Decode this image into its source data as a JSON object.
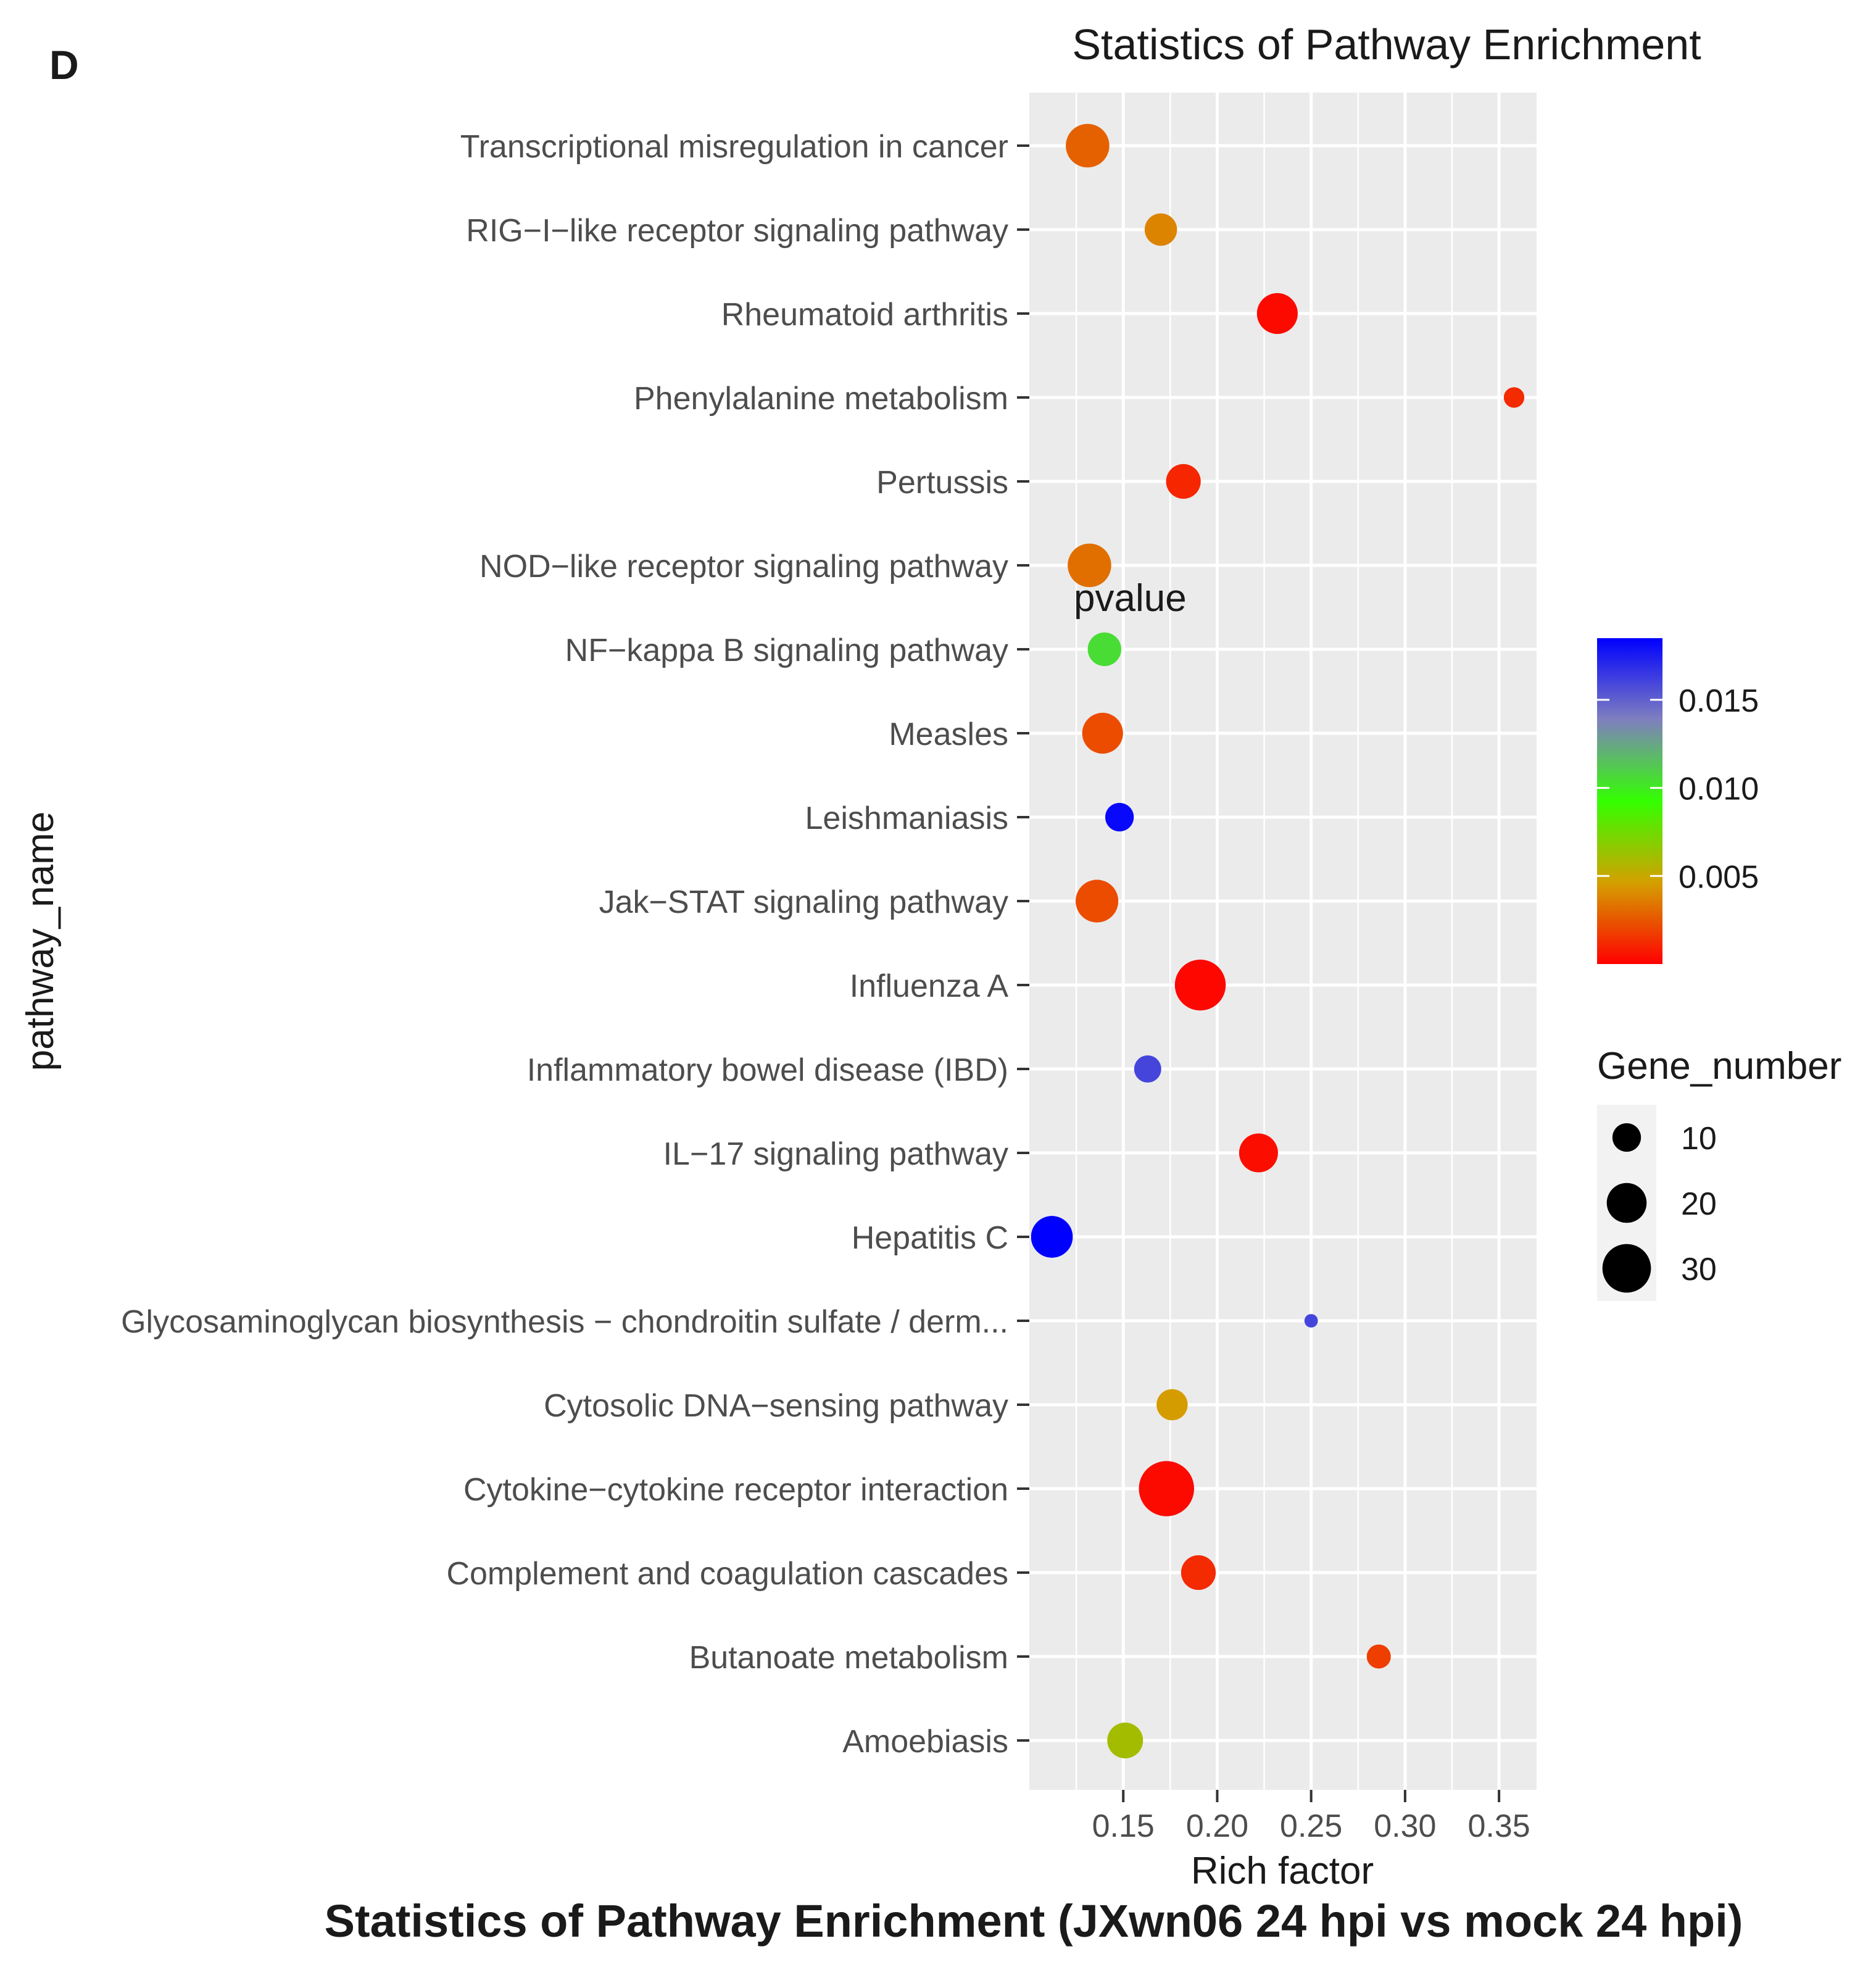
{
  "panel_label": "D",
  "chart_data": {
    "type": "scatter",
    "title": "Statistics of Pathway Enrichment",
    "caption": "Statistics of Pathway Enrichment (JXwn06 24 hpi vs mock 24 hpi)",
    "xlabel": "Rich factor",
    "ylabel": "pathway_name",
    "xlim": [
      0.1,
      0.37
    ],
    "x_ticks": [
      0.15,
      0.2,
      0.25,
      0.3,
      0.35
    ],
    "x_tick_labels": [
      "0.15",
      "0.20",
      "0.25",
      "0.30",
      "0.35"
    ],
    "grid": true,
    "legend_position": "right",
    "color_legend": {
      "title": "pvalue",
      "range": [
        0,
        0.0185
      ],
      "ticks": [
        0.015,
        0.01,
        0.005
      ],
      "tick_labels": [
        "0.015",
        "0.010",
        "0.005"
      ],
      "gradient": [
        "#ff0000",
        "#d4a000",
        "#33ff00",
        "#7f7fbf",
        "#0000ff"
      ]
    },
    "size_legend": {
      "title": "Gene_number",
      "values": [
        10,
        20,
        30
      ],
      "labels": [
        "10",
        "20",
        "30"
      ]
    },
    "points": [
      {
        "pathway": "Transcriptional misregulation in cancer",
        "rich_factor": 0.131,
        "pvalue": 0.0028,
        "gene_number": 24
      },
      {
        "pathway": "RIG−I−like receptor signaling pathway",
        "rich_factor": 0.17,
        "pvalue": 0.0038,
        "gene_number": 13
      },
      {
        "pathway": "Rheumatoid arthritis",
        "rich_factor": 0.232,
        "pvalue": 0.0003,
        "gene_number": 21
      },
      {
        "pathway": "Phenylalanine metabolism",
        "rich_factor": 0.358,
        "pvalue": 0.0012,
        "gene_number": 5
      },
      {
        "pathway": "Pertussis",
        "rich_factor": 0.182,
        "pvalue": 0.0011,
        "gene_number": 15
      },
      {
        "pathway": "NOD−like receptor signaling pathway",
        "rich_factor": 0.132,
        "pvalue": 0.0032,
        "gene_number": 24
      },
      {
        "pathway": "NF−kappa B signaling pathway",
        "rich_factor": 0.14,
        "pvalue": 0.0105,
        "gene_number": 14
      },
      {
        "pathway": "Measles",
        "rich_factor": 0.139,
        "pvalue": 0.0022,
        "gene_number": 21
      },
      {
        "pathway": "Leishmaniasis",
        "rich_factor": 0.148,
        "pvalue": 0.0182,
        "gene_number": 10
      },
      {
        "pathway": "Jak−STAT signaling pathway",
        "rich_factor": 0.136,
        "pvalue": 0.0022,
        "gene_number": 23
      },
      {
        "pathway": "Influenza A",
        "rich_factor": 0.191,
        "pvalue": 0.0002,
        "gene_number": 33
      },
      {
        "pathway": "Inflammatory bowel disease (IBD)",
        "rich_factor": 0.163,
        "pvalue": 0.016,
        "gene_number": 9
      },
      {
        "pathway": "IL−17 signaling pathway",
        "rich_factor": 0.222,
        "pvalue": 0.0004,
        "gene_number": 19
      },
      {
        "pathway": "Hepatitis C",
        "rich_factor": 0.112,
        "pvalue": 0.0185,
        "gene_number": 22
      },
      {
        "pathway": "Glycosaminoglycan biosynthesis − chondroitin sulfate / derm...",
        "rich_factor": 0.25,
        "pvalue": 0.016,
        "gene_number": 2
      },
      {
        "pathway": "Cytosolic DNA−sensing pathway",
        "rich_factor": 0.176,
        "pvalue": 0.0045,
        "gene_number": 12
      },
      {
        "pathway": "Cytokine−cytokine receptor interaction",
        "rich_factor": 0.173,
        "pvalue": 0.0003,
        "gene_number": 39
      },
      {
        "pathway": "Complement and coagulation cascades",
        "rich_factor": 0.19,
        "pvalue": 0.0012,
        "gene_number": 15
      },
      {
        "pathway": "Butanoate metabolism",
        "rich_factor": 0.286,
        "pvalue": 0.0018,
        "gene_number": 7
      },
      {
        "pathway": "Amoebiasis",
        "rich_factor": 0.151,
        "pvalue": 0.006,
        "gene_number": 16
      }
    ]
  }
}
